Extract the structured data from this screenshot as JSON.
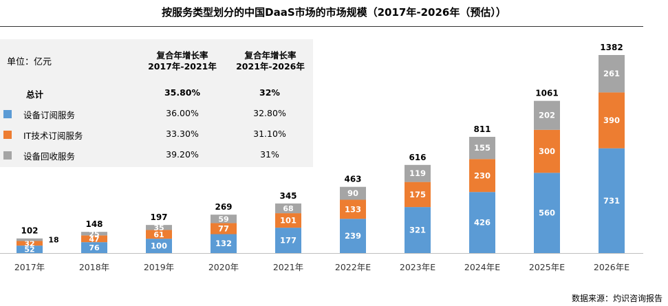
{
  "title": "按服务类型划分的中国DaaS市场的市场规模（2017年-2026年（预估））",
  "legend_table": {
    "unit_label": "单位：亿元",
    "col1_header_line1": "复合年增长率",
    "col1_header_line2": "2017年-2021年",
    "col2_header_line1": "复合年增长率",
    "col2_header_line2": "2021年-2026年",
    "rows": [
      {
        "label": "总计",
        "cagr_2017_2021": "35.80%",
        "cagr_2021_2026": "32%",
        "color": ""
      },
      {
        "label": "设备订阅服务",
        "cagr_2017_2021": "36.00%",
        "cagr_2021_2026": "32.80%",
        "color": "#5b9bd5"
      },
      {
        "label": "IT技术订阅服务",
        "cagr_2017_2021": "33.30%",
        "cagr_2021_2026": "31.10%",
        "color": "#ed7d31"
      },
      {
        "label": "设备回收服务",
        "cagr_2017_2021": "39.20%",
        "cagr_2021_2026": "31%",
        "color": "#a5a5a5"
      }
    ]
  },
  "source_note": "数据来源：灼识咨询报告",
  "chart_data": {
    "type": "bar",
    "stacked": true,
    "categories": [
      "2017年",
      "2018年",
      "2019年",
      "2020年",
      "2021年",
      "2022年E",
      "2023年E",
      "2024年E",
      "2025年E",
      "2026年E"
    ],
    "series": [
      {
        "name": "设备订阅服务",
        "color": "#5b9bd5",
        "values": [
          52,
          76,
          100,
          132,
          177,
          239,
          321,
          426,
          560,
          731
        ]
      },
      {
        "name": "IT技术订阅服务",
        "color": "#ed7d31",
        "values": [
          32,
          47,
          61,
          77,
          101,
          133,
          175,
          230,
          300,
          390
        ]
      },
      {
        "name": "设备回收服务",
        "color": "#a5a5a5",
        "values": [
          18,
          25,
          35,
          59,
          68,
          90,
          119,
          155,
          202,
          261
        ]
      }
    ],
    "totals": [
      102,
      148,
      197,
      269,
      345,
      463,
      616,
      811,
      1061,
      1382
    ],
    "ylim": [
      0,
      1382
    ],
    "grid": false,
    "title": "",
    "xlabel": "",
    "ylabel": ""
  }
}
